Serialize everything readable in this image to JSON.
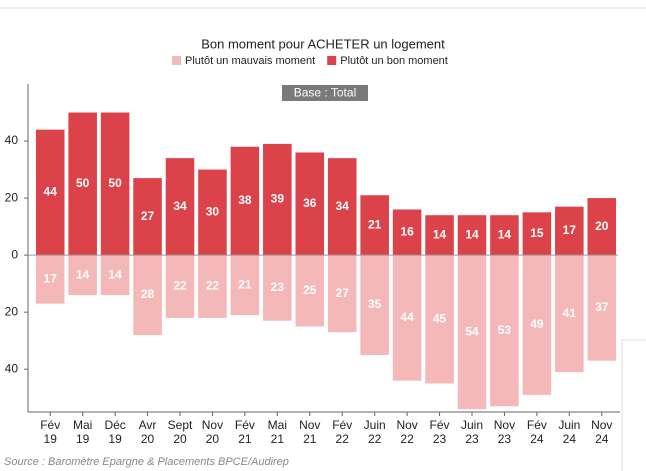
{
  "chart_data": {
    "type": "diverging-bar",
    "title": "Bon moment pour ACHETER un logement",
    "annotation": "Base : Total",
    "source": "Source : Baromètre Epargne & Placements BPCE/Audirep",
    "categories": [
      "Fév 19",
      "Mai 19",
      "Déc 19",
      "Avr 20",
      "Sept 20",
      "Nov 20",
      "Fév 21",
      "Mai 21",
      "Nov 21",
      "Fév 22",
      "Juin 22",
      "Nov 22",
      "Fév 23",
      "Juin 23",
      "Nov 23",
      "Fév 24",
      "Juin 24",
      "Nov 24"
    ],
    "series": [
      {
        "name": "Plutôt un mauvais moment",
        "color": "#f4b8b9",
        "values": [
          -17,
          -14,
          -14,
          -28,
          -22,
          -22,
          -21,
          -23,
          -25,
          -27,
          -35,
          -44,
          -45,
          -54,
          -53,
          -49,
          -41,
          -37
        ],
        "value_labels": [
          "17",
          "14",
          "14",
          "28",
          "22",
          "22",
          "21",
          "23",
          "25",
          "27",
          "35",
          "44",
          "45",
          "54",
          "53",
          "49",
          "41",
          "37"
        ]
      },
      {
        "name": "Plutôt un bon moment",
        "color": "#dc4249",
        "values": [
          44,
          50,
          50,
          27,
          34,
          30,
          38,
          39,
          36,
          34,
          21,
          16,
          14,
          14,
          14,
          15,
          17,
          20
        ]
      }
    ],
    "ylim": [
      -55,
      60
    ],
    "yticks": [
      {
        "value": -40,
        "label": "40"
      },
      {
        "value": -20,
        "label": "20"
      },
      0,
      20,
      40
    ]
  }
}
